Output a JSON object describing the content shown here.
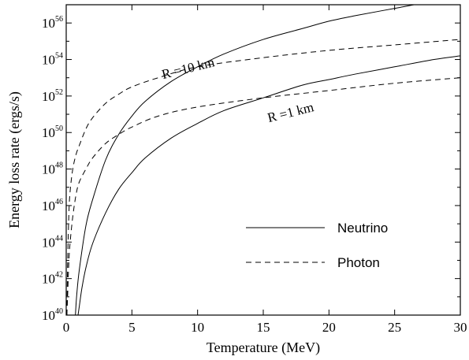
{
  "chart_data": {
    "type": "line",
    "xlabel": "Temperature (MeV)",
    "ylabel": "Energy loss rate (ergs/s)",
    "xlim": [
      0,
      30
    ],
    "ylim": [
      40,
      57
    ],
    "yscale": "log",
    "x_ticks": [
      "0",
      "5",
      "10",
      "15",
      "20",
      "25",
      "30"
    ],
    "y_ticks": [
      {
        "base": "10",
        "exp": "40"
      },
      {
        "base": "10",
        "exp": "42"
      },
      {
        "base": "10",
        "exp": "44"
      },
      {
        "base": "10",
        "exp": "46"
      },
      {
        "base": "10",
        "exp": "48"
      },
      {
        "base": "10",
        "exp": "50"
      },
      {
        "base": "10",
        "exp": "52"
      },
      {
        "base": "10",
        "exp": "54"
      },
      {
        "base": "10",
        "exp": "56"
      }
    ],
    "grid": false,
    "legend_position": "lower-right",
    "legend": [
      {
        "label": "Neutrino",
        "style": "solid"
      },
      {
        "label": "Photon",
        "style": "dashed"
      }
    ],
    "annotations": [
      {
        "text": "R =10 km"
      },
      {
        "text": "R =1 km"
      }
    ],
    "series": [
      {
        "style": "solid",
        "x": [
          0.7,
          0.8,
          1.0,
          1.5,
          2,
          3,
          4,
          5,
          6,
          8,
          10,
          12,
          15,
          18,
          20,
          22,
          25,
          28,
          30
        ],
        "log10_y": [
          40.0,
          41.1,
          42.5,
          44.9,
          46.3,
          48.5,
          49.9,
          50.9,
          51.7,
          52.8,
          53.6,
          54.3,
          55.1,
          55.7,
          56.1,
          56.4,
          56.8,
          57.2,
          57.4
        ]
      },
      {
        "style": "solid",
        "x": [
          0.9,
          1.0,
          1.2,
          1.5,
          2,
          3,
          4,
          5,
          6,
          8,
          10,
          12,
          15,
          18,
          20,
          22,
          25,
          28,
          30
        ],
        "log10_y": [
          40.0,
          40.5,
          41.5,
          42.6,
          43.9,
          45.6,
          46.9,
          47.8,
          48.6,
          49.7,
          50.5,
          51.2,
          51.9,
          52.6,
          52.9,
          53.2,
          53.6,
          54.0,
          54.2
        ]
      },
      {
        "style": "dashed",
        "x": [
          0.05,
          0.1,
          0.2,
          0.3,
          0.5,
          0.75,
          1,
          1.5,
          2,
          3,
          4,
          5,
          7,
          10,
          15,
          20,
          25,
          30
        ],
        "log10_y": [
          40.0,
          42.5,
          45.5,
          46.8,
          48.0,
          48.8,
          49.3,
          50.2,
          50.8,
          51.6,
          52.1,
          52.5,
          53.0,
          53.6,
          54.1,
          54.5,
          54.8,
          55.1
        ]
      },
      {
        "style": "dashed",
        "x": [
          0.05,
          0.1,
          0.2,
          0.3,
          0.5,
          0.75,
          1,
          1.5,
          2,
          3,
          4,
          5,
          7,
          10,
          15,
          20,
          25,
          30
        ],
        "log10_y": [
          40.0,
          40.9,
          42.9,
          44.0,
          45.4,
          46.6,
          47.3,
          48.0,
          48.6,
          49.4,
          49.9,
          50.3,
          50.9,
          51.4,
          51.9,
          52.3,
          52.7,
          53.0
        ]
      }
    ]
  }
}
